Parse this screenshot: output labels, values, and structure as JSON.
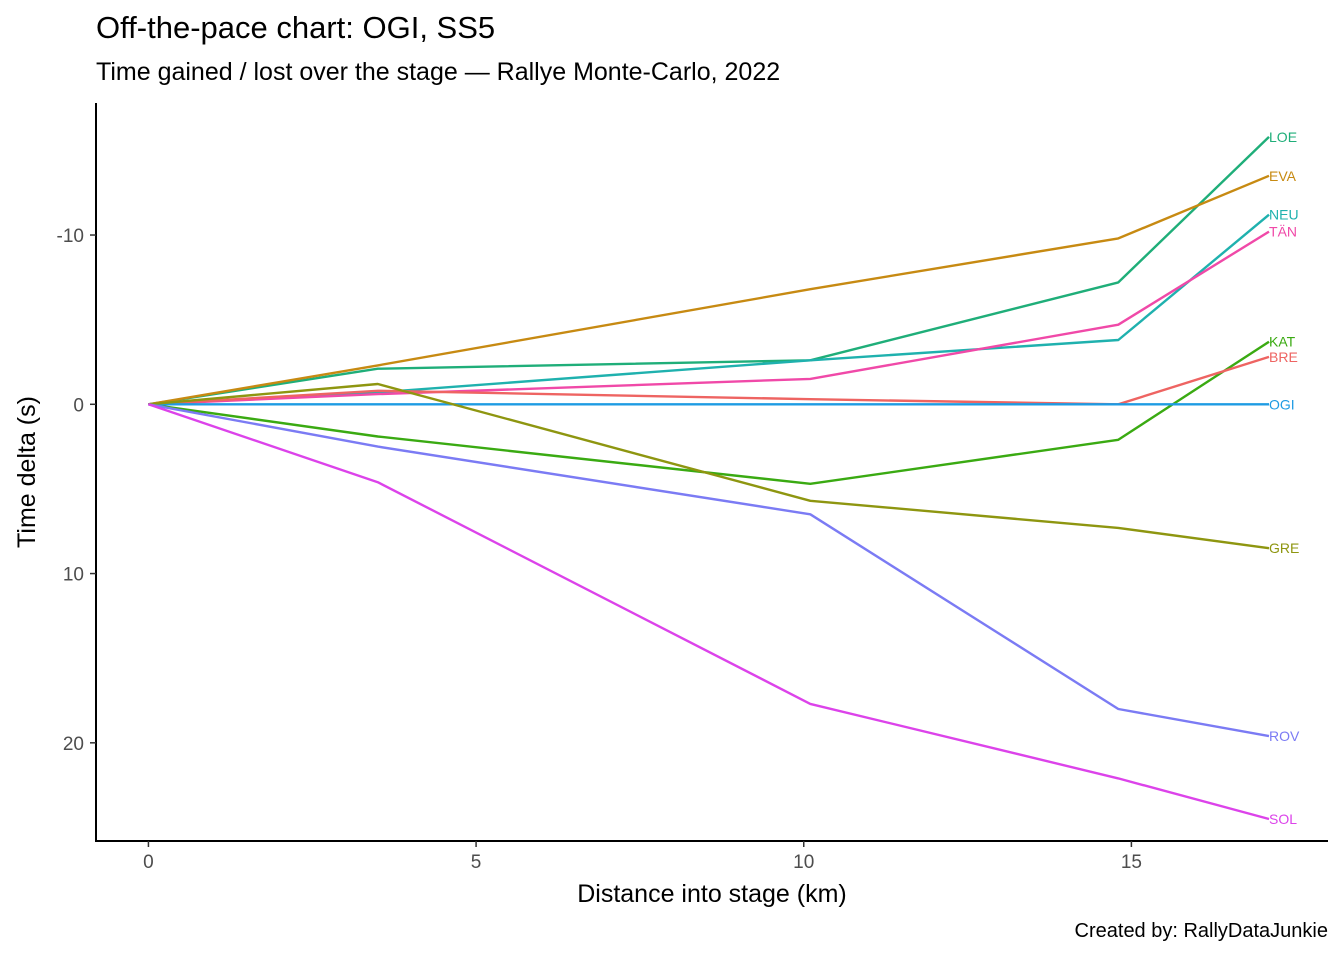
{
  "title": "Off-the-pace chart: OGI, SS5",
  "subtitle": "Time gained / lost over the stage — Rallye Monte-Carlo, 2022",
  "caption": "Created by: RallyDataJunkie",
  "chart_data": {
    "type": "line",
    "xlabel": "Distance into stage (km)",
    "ylabel": "Time delta (s)",
    "xlim": [
      -0.8,
      18.0
    ],
    "ylim": [
      25.8,
      -17.8
    ],
    "y_reversed": true,
    "xticks": [
      0,
      5,
      10,
      15
    ],
    "yticks": [
      -10,
      0,
      10,
      20
    ],
    "grid": false,
    "legend": "none (series labels at line ends)",
    "x": [
      0,
      3.5,
      10.1,
      14.8,
      17.1
    ],
    "series": [
      {
        "name": "LOE",
        "color": "#1FAE79",
        "values": [
          0,
          -2.1,
          -2.6,
          -7.2,
          -15.8
        ]
      },
      {
        "name": "EVA",
        "color": "#C78A12",
        "values": [
          0,
          -2.3,
          -6.8,
          -9.8,
          -13.5
        ]
      },
      {
        "name": "NEU",
        "color": "#1FB1AE",
        "values": [
          0,
          -0.7,
          -2.6,
          -3.8,
          -11.2
        ]
      },
      {
        "name": "TÄN",
        "color": "#F049A8",
        "values": [
          0,
          -0.6,
          -1.5,
          -4.7,
          -10.2
        ]
      },
      {
        "name": "KAT",
        "color": "#3AAA12",
        "values": [
          0,
          1.9,
          4.7,
          2.1,
          -3.7
        ]
      },
      {
        "name": "BRE",
        "color": "#EE6462",
        "values": [
          0,
          -0.8,
          -0.3,
          0,
          -2.8
        ]
      },
      {
        "name": "OGI",
        "color": "#1E9BE3",
        "values": [
          0,
          0,
          0,
          0,
          0
        ]
      },
      {
        "name": "GRE",
        "color": "#8E9610",
        "values": [
          0,
          -1.2,
          5.7,
          7.3,
          8.5
        ]
      },
      {
        "name": "ROV",
        "color": "#7B7BF4",
        "values": [
          0,
          2.5,
          6.5,
          18.0,
          19.6
        ]
      },
      {
        "name": "SOL",
        "color": "#DC43EA",
        "values": [
          0,
          4.6,
          17.7,
          22.1,
          24.5
        ]
      }
    ]
  }
}
